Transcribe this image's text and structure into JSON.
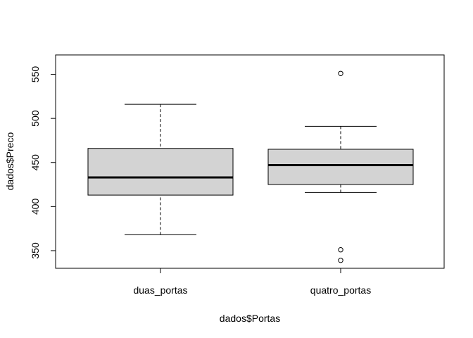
{
  "chart_data": {
    "type": "boxplot",
    "xlabel": "dados$Portas",
    "ylabel": "dados$Preco",
    "ylim": [
      330,
      572
    ],
    "y_ticks": [
      350,
      400,
      450,
      500,
      550
    ],
    "categories": [
      "duas_portas",
      "quatro_portas"
    ],
    "boxes": [
      {
        "category": "duas_portas",
        "whisker_low": 368,
        "q1": 413,
        "median": 433,
        "q3": 466,
        "whisker_high": 516,
        "outliers": []
      },
      {
        "category": "quatro_portas",
        "whisker_low": 416,
        "q1": 425,
        "median": 447,
        "q3": 465,
        "whisker_high": 491,
        "outliers": [
          551,
          351,
          339
        ]
      }
    ],
    "box_fill": "#d3d3d3",
    "grid": false,
    "legend": "none"
  }
}
